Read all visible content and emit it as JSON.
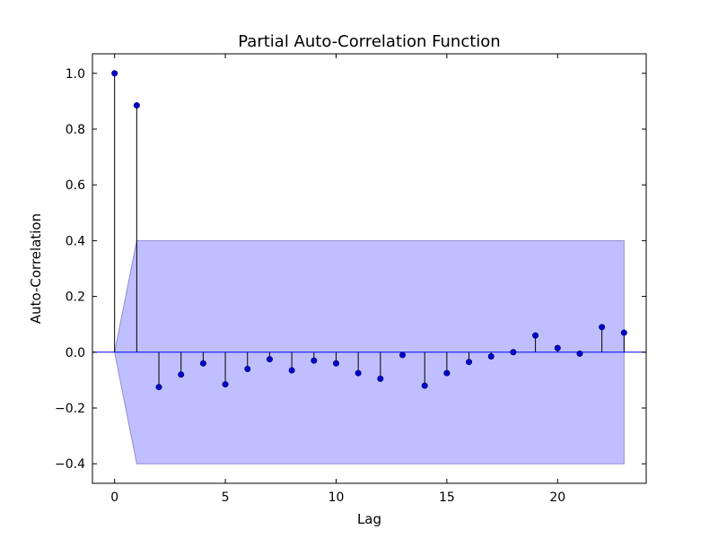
{
  "chart_data": {
    "type": "stem",
    "title": "Partial Auto-Correlation Function",
    "xlabel": "Lag",
    "ylabel": "Auto-Correlation",
    "xlim": [
      -1,
      24
    ],
    "ylim": [
      -0.47,
      1.07
    ],
    "xticks": [
      0,
      5,
      10,
      15,
      20
    ],
    "xtick_labels": [
      "0",
      "5",
      "10",
      "15",
      "20"
    ],
    "yticks": [
      -0.4,
      -0.2,
      0.0,
      0.2,
      0.4,
      0.6,
      0.8,
      1.0
    ],
    "ytick_labels": [
      "−0.4",
      "−0.2",
      "0.0",
      "0.2",
      "0.4",
      "0.6",
      "0.8",
      "1.0"
    ],
    "grid": false,
    "lags": [
      0,
      1,
      2,
      3,
      4,
      5,
      6,
      7,
      8,
      9,
      10,
      11,
      12,
      13,
      14,
      15,
      16,
      17,
      18,
      19,
      20,
      21,
      22,
      23
    ],
    "values": [
      1.0,
      0.885,
      -0.125,
      -0.08,
      -0.04,
      -0.115,
      -0.06,
      -0.025,
      -0.065,
      -0.03,
      -0.04,
      -0.075,
      -0.095,
      -0.01,
      -0.12,
      -0.075,
      -0.035,
      -0.015,
      0.0,
      0.06,
      0.015,
      -0.005,
      0.09,
      0.07
    ],
    "confidence_band": {
      "x": [
        0,
        1,
        23
      ],
      "upper": [
        0.0,
        0.4,
        0.4
      ],
      "lower": [
        0.0,
        -0.4,
        -0.4
      ]
    },
    "colors": {
      "marker": "#0000cc",
      "stem": "#000000",
      "baseline": "#0000ff",
      "band_fill": "#bfbfff",
      "band_edge": "#8f8fcf"
    }
  }
}
